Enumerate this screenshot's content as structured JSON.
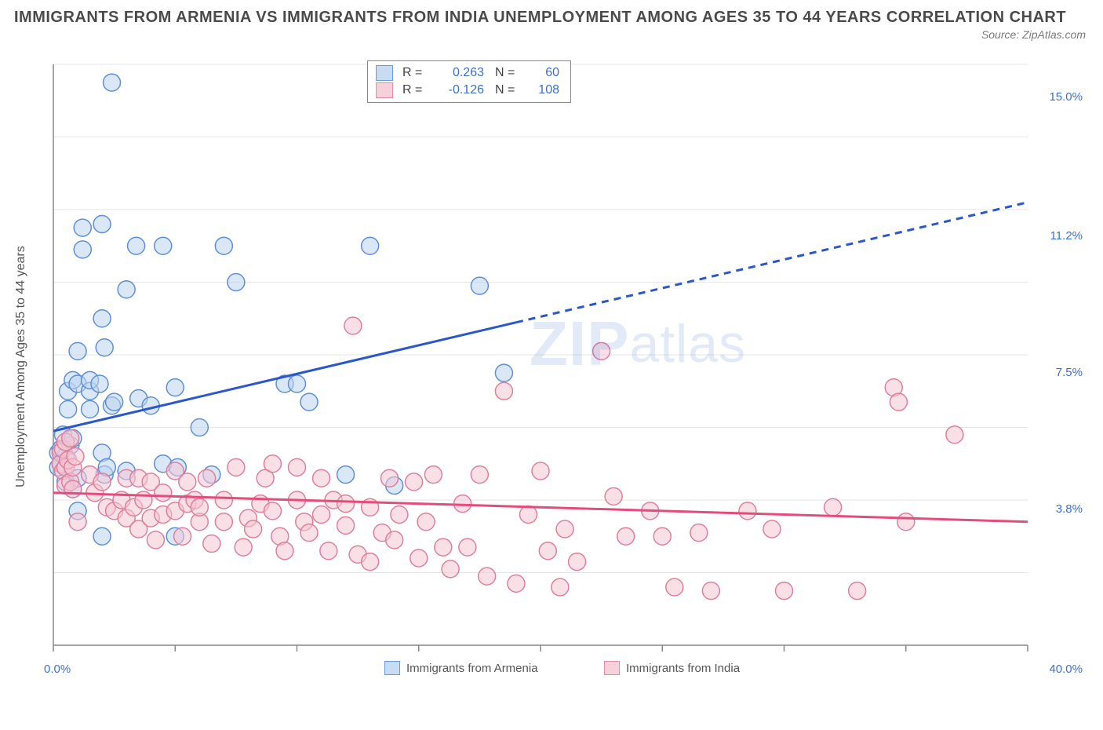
{
  "title": "IMMIGRANTS FROM ARMENIA VS IMMIGRANTS FROM INDIA UNEMPLOYMENT AMONG AGES 35 TO 44 YEARS CORRELATION CHART",
  "source": "Source: ZipAtlas.com",
  "ylabel": "Unemployment Among Ages 35 to 44 years",
  "watermark_bold": "ZIP",
  "watermark_rest": "atlas",
  "legend_stats": {
    "series": [
      {
        "color_fill": "#c7dbf2",
        "color_border": "#6a9be0",
        "r_label": "R =",
        "r_value": "0.263",
        "n_label": "N =",
        "n_value": "60"
      },
      {
        "color_fill": "#f6d0da",
        "color_border": "#e58ca6",
        "r_label": "R =",
        "r_value": "-0.126",
        "n_label": "N =",
        "n_value": "108"
      }
    ]
  },
  "legend_bottom": [
    {
      "color_fill": "#c7dbf2",
      "color_border": "#6a9be0",
      "label": "Immigrants from Armenia"
    },
    {
      "color_fill": "#f6d0da",
      "color_border": "#e58ca6",
      "label": "Immigrants from India"
    }
  ],
  "chart": {
    "type": "scatter",
    "background_color": "#ffffff",
    "grid_color": "#e6e6e6",
    "axis_color": "#888888",
    "xlim": [
      0,
      40
    ],
    "ylim": [
      0,
      16
    ],
    "xticks": [
      0,
      5,
      10,
      15,
      20,
      25,
      30,
      35,
      40
    ],
    "xtick_labels": {
      "0": "0.0%",
      "40": "40.0%"
    },
    "yticks": [
      3.8,
      7.5,
      11.2,
      15.0
    ],
    "ytick_labels": [
      "3.8%",
      "7.5%",
      "11.2%",
      "15.0%"
    ],
    "ygrid": [
      2,
      4,
      6,
      8,
      10,
      12,
      14,
      16
    ],
    "marker_radius": 11,
    "marker_opacity": 0.55,
    "series": [
      {
        "name": "armenia",
        "color_fill": "#bcd4ef",
        "color_stroke": "#5f8fd6",
        "trend": {
          "color": "#2b57c9",
          "width": 3,
          "solid_until_x": 19,
          "x0": 0,
          "y0": 5.9,
          "x1": 40,
          "y1": 12.2
        },
        "points": [
          [
            0.2,
            5.3
          ],
          [
            0.2,
            4.9
          ],
          [
            0.3,
            5.0
          ],
          [
            0.3,
            5.4
          ],
          [
            0.4,
            4.8
          ],
          [
            0.4,
            5.8
          ],
          [
            0.5,
            5.2
          ],
          [
            0.5,
            4.5
          ],
          [
            0.6,
            7.0
          ],
          [
            0.6,
            6.5
          ],
          [
            0.7,
            5.5
          ],
          [
            0.8,
            4.3
          ],
          [
            0.8,
            5.7
          ],
          [
            0.8,
            7.3
          ],
          [
            1.0,
            3.7
          ],
          [
            1.0,
            4.6
          ],
          [
            1.0,
            7.2
          ],
          [
            1.0,
            8.1
          ],
          [
            1.2,
            10.9
          ],
          [
            1.2,
            11.5
          ],
          [
            1.5,
            6.5
          ],
          [
            1.5,
            7.0
          ],
          [
            1.5,
            7.3
          ],
          [
            1.9,
            7.2
          ],
          [
            2.0,
            3.0
          ],
          [
            2.0,
            5.3
          ],
          [
            2.0,
            9.0
          ],
          [
            2.0,
            11.6
          ],
          [
            2.1,
            4.7
          ],
          [
            2.1,
            8.2
          ],
          [
            2.2,
            4.9
          ],
          [
            2.4,
            6.6
          ],
          [
            2.4,
            15.5
          ],
          [
            2.5,
            6.7
          ],
          [
            3.0,
            4.8
          ],
          [
            3.0,
            9.8
          ],
          [
            3.4,
            11.0
          ],
          [
            3.5,
            6.8
          ],
          [
            4.0,
            6.6
          ],
          [
            4.5,
            5.0
          ],
          [
            4.5,
            11.0
          ],
          [
            5.0,
            3.0
          ],
          [
            5.0,
            7.1
          ],
          [
            5.1,
            4.9
          ],
          [
            6.0,
            6.0
          ],
          [
            6.5,
            4.7
          ],
          [
            7.0,
            11.0
          ],
          [
            7.5,
            10.0
          ],
          [
            9.5,
            7.2
          ],
          [
            10.0,
            7.2
          ],
          [
            10.5,
            6.7
          ],
          [
            12.0,
            4.7
          ],
          [
            13.0,
            11.0
          ],
          [
            14.0,
            4.4
          ],
          [
            17.5,
            9.9
          ],
          [
            18.5,
            7.5
          ]
        ]
      },
      {
        "name": "india",
        "color_fill": "#f4c7d4",
        "color_stroke": "#de7f9d",
        "trend": {
          "color": "#e44d7b",
          "width": 3,
          "solid_until_x": 40,
          "x0": 0,
          "y0": 4.2,
          "x1": 40,
          "y1": 3.4
        },
        "points": [
          [
            0.3,
            5.3
          ],
          [
            0.3,
            5.0
          ],
          [
            0.4,
            4.8
          ],
          [
            0.4,
            5.4
          ],
          [
            0.5,
            4.9
          ],
          [
            0.5,
            5.6
          ],
          [
            0.5,
            4.4
          ],
          [
            0.6,
            5.1
          ],
          [
            0.7,
            5.7
          ],
          [
            0.7,
            4.5
          ],
          [
            0.8,
            4.9
          ],
          [
            0.8,
            4.3
          ],
          [
            0.9,
            5.2
          ],
          [
            1.0,
            3.4
          ],
          [
            1.5,
            4.7
          ],
          [
            1.7,
            4.2
          ],
          [
            2.0,
            4.5
          ],
          [
            2.2,
            3.8
          ],
          [
            2.5,
            3.7
          ],
          [
            2.8,
            4.0
          ],
          [
            3.0,
            4.6
          ],
          [
            3.0,
            3.5
          ],
          [
            3.3,
            3.8
          ],
          [
            3.5,
            4.6
          ],
          [
            3.5,
            3.2
          ],
          [
            3.7,
            4.0
          ],
          [
            4.0,
            4.5
          ],
          [
            4.0,
            3.5
          ],
          [
            4.2,
            2.9
          ],
          [
            4.5,
            4.2
          ],
          [
            4.5,
            3.6
          ],
          [
            5.0,
            3.7
          ],
          [
            5.0,
            4.8
          ],
          [
            5.3,
            3.0
          ],
          [
            5.5,
            3.9
          ],
          [
            5.5,
            4.5
          ],
          [
            5.8,
            4.0
          ],
          [
            6.0,
            3.4
          ],
          [
            6.0,
            3.8
          ],
          [
            6.3,
            4.6
          ],
          [
            6.5,
            2.8
          ],
          [
            7.0,
            3.4
          ],
          [
            7.0,
            4.0
          ],
          [
            7.5,
            4.9
          ],
          [
            7.8,
            2.7
          ],
          [
            8.0,
            3.5
          ],
          [
            8.2,
            3.2
          ],
          [
            8.5,
            3.9
          ],
          [
            8.7,
            4.6
          ],
          [
            9.0,
            5.0
          ],
          [
            9.0,
            3.7
          ],
          [
            9.3,
            3.0
          ],
          [
            9.5,
            2.6
          ],
          [
            10.0,
            4.0
          ],
          [
            10.0,
            4.9
          ],
          [
            10.3,
            3.4
          ],
          [
            10.5,
            3.1
          ],
          [
            11.0,
            4.6
          ],
          [
            11.0,
            3.6
          ],
          [
            11.3,
            2.6
          ],
          [
            11.5,
            4.0
          ],
          [
            12.0,
            3.3
          ],
          [
            12.0,
            3.9
          ],
          [
            12.3,
            8.8
          ],
          [
            12.5,
            2.5
          ],
          [
            13.0,
            3.8
          ],
          [
            13.0,
            2.3
          ],
          [
            13.5,
            3.1
          ],
          [
            13.8,
            4.6
          ],
          [
            14.0,
            2.9
          ],
          [
            14.2,
            3.6
          ],
          [
            14.8,
            4.5
          ],
          [
            15.0,
            2.4
          ],
          [
            15.3,
            3.4
          ],
          [
            15.6,
            4.7
          ],
          [
            16.0,
            2.7
          ],
          [
            16.3,
            2.1
          ],
          [
            16.8,
            3.9
          ],
          [
            17.0,
            2.7
          ],
          [
            17.5,
            4.7
          ],
          [
            17.8,
            1.9
          ],
          [
            18.5,
            7.0
          ],
          [
            19.0,
            1.7
          ],
          [
            19.5,
            3.6
          ],
          [
            20.0,
            4.8
          ],
          [
            20.3,
            2.6
          ],
          [
            20.8,
            1.6
          ],
          [
            21.0,
            3.2
          ],
          [
            21.5,
            2.3
          ],
          [
            22.5,
            8.1
          ],
          [
            23.0,
            4.1
          ],
          [
            23.5,
            3.0
          ],
          [
            24.5,
            3.7
          ],
          [
            25.0,
            3.0
          ],
          [
            25.5,
            1.6
          ],
          [
            26.5,
            3.1
          ],
          [
            27.0,
            1.5
          ],
          [
            28.5,
            3.7
          ],
          [
            29.5,
            3.2
          ],
          [
            30.0,
            1.5
          ],
          [
            32.0,
            3.8
          ],
          [
            33.0,
            1.5
          ],
          [
            34.5,
            7.1
          ],
          [
            34.7,
            6.7
          ],
          [
            35.0,
            3.4
          ],
          [
            37.0,
            5.8
          ]
        ]
      }
    ]
  }
}
